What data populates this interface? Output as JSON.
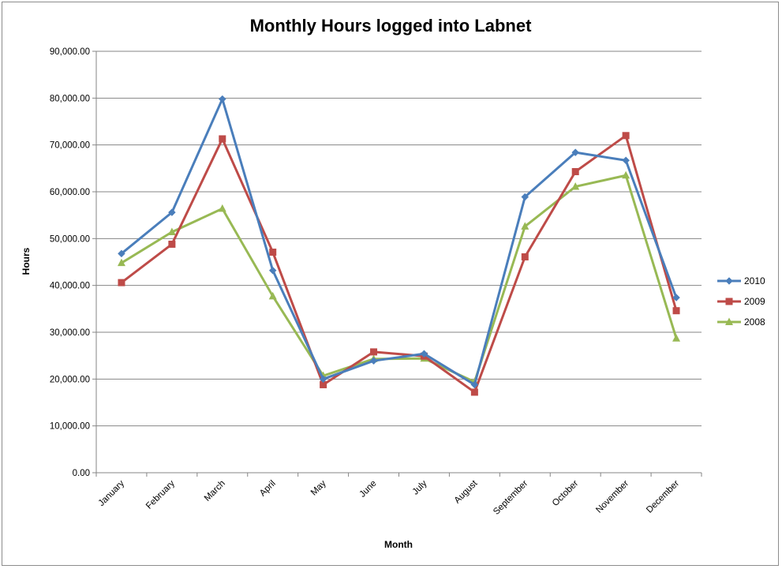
{
  "chart_data": {
    "type": "line",
    "title": "Monthly Hours logged into Labnet",
    "xlabel": "Month",
    "ylabel": "Hours",
    "ylim": [
      0,
      90000
    ],
    "ytick_values": [
      0,
      10000,
      20000,
      30000,
      40000,
      50000,
      60000,
      70000,
      80000,
      90000
    ],
    "ytick_labels": [
      "0.00",
      "10,000.00",
      "20,000.00",
      "30,000.00",
      "40,000.00",
      "50,000.00",
      "60,000.00",
      "70,000.00",
      "80,000.00",
      "90,000.00"
    ],
    "categories": [
      "January",
      "February",
      "March",
      "April",
      "May",
      "June",
      "July",
      "August",
      "September",
      "October",
      "November",
      "December"
    ],
    "grid": true,
    "legend_position": "right",
    "series": [
      {
        "name": "2010",
        "color": "#4a7ebb",
        "marker": "diamond",
        "values": [
          46800,
          55600,
          79800,
          43200,
          20000,
          23900,
          25400,
          18800,
          58900,
          68400,
          66700,
          37400
        ]
      },
      {
        "name": "2009",
        "color": "#be4b48",
        "marker": "square",
        "values": [
          40600,
          48800,
          71300,
          47100,
          18800,
          25800,
          24900,
          17200,
          46100,
          64300,
          72000,
          34600
        ]
      },
      {
        "name": "2008",
        "color": "#98b954",
        "marker": "triangle",
        "values": [
          44800,
          51400,
          56400,
          37700,
          20700,
          24300,
          24400,
          19400,
          52600,
          61100,
          63500,
          28700
        ]
      }
    ]
  }
}
